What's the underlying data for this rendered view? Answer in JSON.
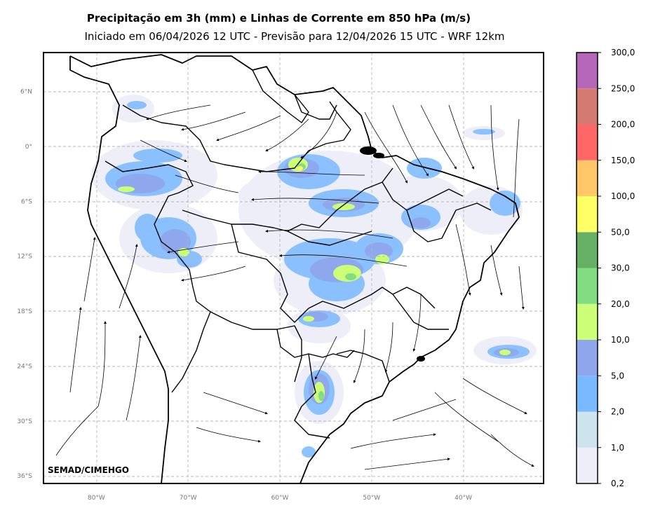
{
  "title": "Precipitação em 3h (mm) e Linhas de Corrente em 850 hPa (m/s)",
  "subtitle": "Iniciado em 06/04/2026 12 UTC - Previsão para 12/04/2026 15 UTC - WRF 12km",
  "credit": "SEMAD/CIMEHGO",
  "map": {
    "lat_labels": [
      "6°N",
      "0°",
      "6°S",
      "12°S",
      "18°S",
      "24°S",
      "30°S",
      "36°S"
    ],
    "lon_labels": [
      "80°W",
      "70°W",
      "60°W",
      "50°W",
      "40°W"
    ],
    "lat_values": [
      6,
      0,
      -6,
      -12,
      -18,
      -24,
      -30,
      -36
    ],
    "lon_values": [
      -80,
      -70,
      -60,
      -50,
      -40
    ],
    "grid": true,
    "gridline_style": "dashed"
  },
  "colorbar": {
    "labels": [
      "0,2",
      "1,0",
      "2,0",
      "5,0",
      "10,0",
      "20,0",
      "30,0",
      "50,0",
      "100,0",
      "150,0",
      "200,0",
      "250,0",
      "300,0"
    ],
    "colors": [
      "#eeeef8",
      "#cde4ef",
      "#78b9ff",
      "#8fa5ec",
      "#ccff77",
      "#82dd82",
      "#66b066",
      "#ffff66",
      "#ffc767",
      "#ff6666",
      "#d47a73",
      "#b466b9"
    ]
  }
}
